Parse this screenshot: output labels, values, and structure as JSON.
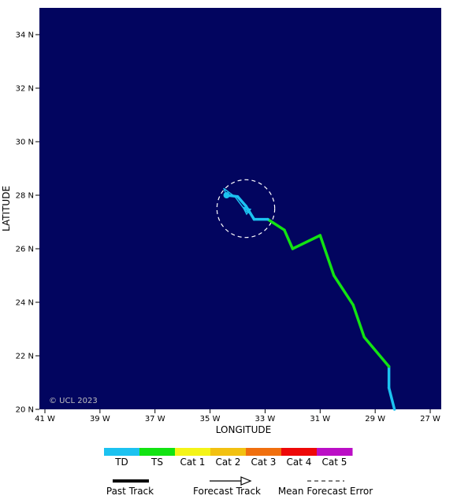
{
  "chart_data": {
    "type": "map-track",
    "xlabel": "LONGITUDE",
    "ylabel": "LATITUDE",
    "xlim": [
      -41.2,
      -26.6
    ],
    "ylim": [
      20,
      35
    ],
    "x_ticks": [
      {
        "value": -41,
        "label": "41 W"
      },
      {
        "value": -39,
        "label": "39 W"
      },
      {
        "value": -37,
        "label": "37 W"
      },
      {
        "value": -35,
        "label": "35 W"
      },
      {
        "value": -33,
        "label": "33 W"
      },
      {
        "value": -31,
        "label": "31 W"
      },
      {
        "value": -29,
        "label": "29 W"
      },
      {
        "value": -27,
        "label": "27 W"
      }
    ],
    "y_ticks": [
      {
        "value": 20,
        "label": "20 N"
      },
      {
        "value": 22,
        "label": "22 N"
      },
      {
        "value": 24,
        "label": "24 N"
      },
      {
        "value": 26,
        "label": "26 N"
      },
      {
        "value": 28,
        "label": "28 N"
      },
      {
        "value": 30,
        "label": "30 N"
      },
      {
        "value": 32,
        "label": "32 N"
      },
      {
        "value": 34,
        "label": "34 N"
      }
    ],
    "past_track": [
      {
        "lon": -28.3,
        "lat": 20.0,
        "cat": "TD"
      },
      {
        "lon": -28.5,
        "lat": 20.8,
        "cat": "TD"
      },
      {
        "lon": -28.5,
        "lat": 21.6,
        "cat": "TD"
      },
      {
        "lon": -29.4,
        "lat": 22.7,
        "cat": "TS"
      },
      {
        "lon": -29.8,
        "lat": 23.9,
        "cat": "TS"
      },
      {
        "lon": -30.5,
        "lat": 25.0,
        "cat": "TS"
      },
      {
        "lon": -31.0,
        "lat": 26.5,
        "cat": "TS"
      },
      {
        "lon": -32.0,
        "lat": 26.0,
        "cat": "TS"
      },
      {
        "lon": -32.3,
        "lat": 26.7,
        "cat": "TS"
      },
      {
        "lon": -32.9,
        "lat": 27.1,
        "cat": "TS"
      },
      {
        "lon": -33.4,
        "lat": 27.1,
        "cat": "TD"
      },
      {
        "lon": -33.7,
        "lat": 27.6,
        "cat": "TD"
      },
      {
        "lon": -34.0,
        "lat": 27.95,
        "cat": "TD"
      },
      {
        "lon": -34.4,
        "lat": 28.0,
        "cat": "TD"
      }
    ],
    "current_position": {
      "lon": -34.4,
      "lat": 28.0
    },
    "forecast_track": [
      {
        "lon": -34.4,
        "lat": 28.0
      },
      {
        "lon": -34.5,
        "lat": 28.25
      },
      {
        "lon": -34.1,
        "lat": 27.95
      },
      {
        "lon": -33.7,
        "lat": 27.4
      },
      {
        "lon": -33.5,
        "lat": 27.3
      },
      {
        "lon": -33.8,
        "lat": 27.55
      }
    ],
    "error_cone": {
      "lon": -33.7,
      "lat": 27.5,
      "radius_deg": 1.05
    },
    "copyright": "© UCL 2023"
  },
  "legend": {
    "categories": [
      {
        "name": "TD",
        "color": "#1cc2f0"
      },
      {
        "name": "TS",
        "color": "#12e312"
      },
      {
        "name": "Cat 1",
        "color": "#f4f418"
      },
      {
        "name": "Cat 2",
        "color": "#f2c111"
      },
      {
        "name": "Cat 3",
        "color": "#f06f0e"
      },
      {
        "name": "Cat 4",
        "color": "#ee0808"
      },
      {
        "name": "Cat 5",
        "color": "#bb0fc6"
      }
    ],
    "track_types": {
      "past": "Past Track",
      "forecast": "Forecast Track",
      "error": "Mean Forecast Error"
    }
  },
  "colors": {
    "ocean": "#02055f",
    "cone": "#ffffff"
  }
}
